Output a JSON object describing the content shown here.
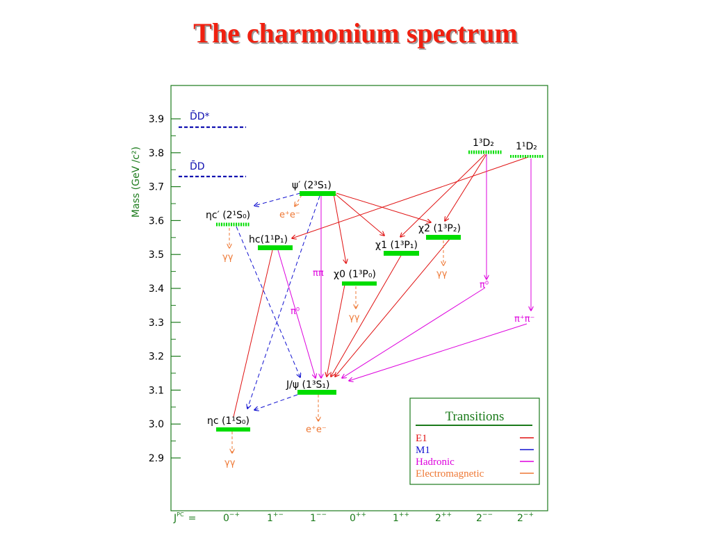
{
  "title": "The charmonium spectrum",
  "colors": {
    "frame": "#1a7a1a",
    "level": "#00dd00",
    "threshold": "#1010b0",
    "e1": "#e01010",
    "m1": "#1010d0",
    "hadronic": "#dd00dd",
    "em": "#ee7733",
    "axis_label": "#1a7a1a"
  },
  "axis": {
    "ylabel": "Mass (GeV /c²)",
    "ymin": 2.9,
    "ymax": 3.9,
    "ticks": [
      "2.9",
      "3.0",
      "3.1",
      "3.2",
      "3.3",
      "3.4",
      "3.5",
      "3.6",
      "3.7",
      "3.8",
      "3.9"
    ],
    "jpc_label": "J",
    "jpc_sup": "PC",
    "jpc_eq": "=",
    "jpc": [
      {
        "base": "0",
        "sup": "−+"
      },
      {
        "base": "1",
        "sup": "+−"
      },
      {
        "base": "1",
        "sup": "−−"
      },
      {
        "base": "0",
        "sup": "++"
      },
      {
        "base": "1",
        "sup": "++"
      },
      {
        "base": "2",
        "sup": "++"
      },
      {
        "base": "2",
        "sup": "−−"
      },
      {
        "base": "2",
        "sup": "−+"
      }
    ]
  },
  "thresholds": {
    "dd_star": {
      "label": "D̄D*",
      "mass": 3.872
    },
    "dd": {
      "label": "D̄D",
      "mass": 3.73
    }
  },
  "states": {
    "etac": {
      "label": "ηc (1¹S₀)",
      "mass": 2.984
    },
    "jpsi": {
      "label": "J/ψ (1³S₁)",
      "mass": 3.097
    },
    "etac2": {
      "label": "ηc′ (2¹S₀)",
      "mass": 3.594
    },
    "hc": {
      "label": "hc(1¹P₁)",
      "mass": 3.525
    },
    "psi2": {
      "label": "ψ′ (2³S₁)",
      "mass": 3.686
    },
    "chi0": {
      "label": "χ0 (1³P₀)",
      "mass": 3.415
    },
    "chi1": {
      "label": "χ1 (1³P₁)",
      "mass": 3.511
    },
    "chi2": {
      "label": "χ2 (1³P₂)",
      "mass": 3.556
    },
    "d13": {
      "label": "1³D₂",
      "mass": 3.8
    },
    "d11": {
      "label": "1¹D₂",
      "mass": 3.79
    }
  },
  "decay_labels": {
    "gg": "γγ",
    "ee": "e⁺e⁻",
    "pipi": "ππ",
    "pi0": "π⁰",
    "pipm": "π⁺π⁻"
  },
  "legend": {
    "title": "Transitions",
    "items": [
      {
        "label": "E1",
        "color": "#e01010"
      },
      {
        "label": "M1",
        "color": "#1010d0"
      },
      {
        "label": "Hadronic",
        "color": "#dd00dd"
      },
      {
        "label": "Electromagnetic",
        "color": "#ee7733"
      }
    ]
  }
}
